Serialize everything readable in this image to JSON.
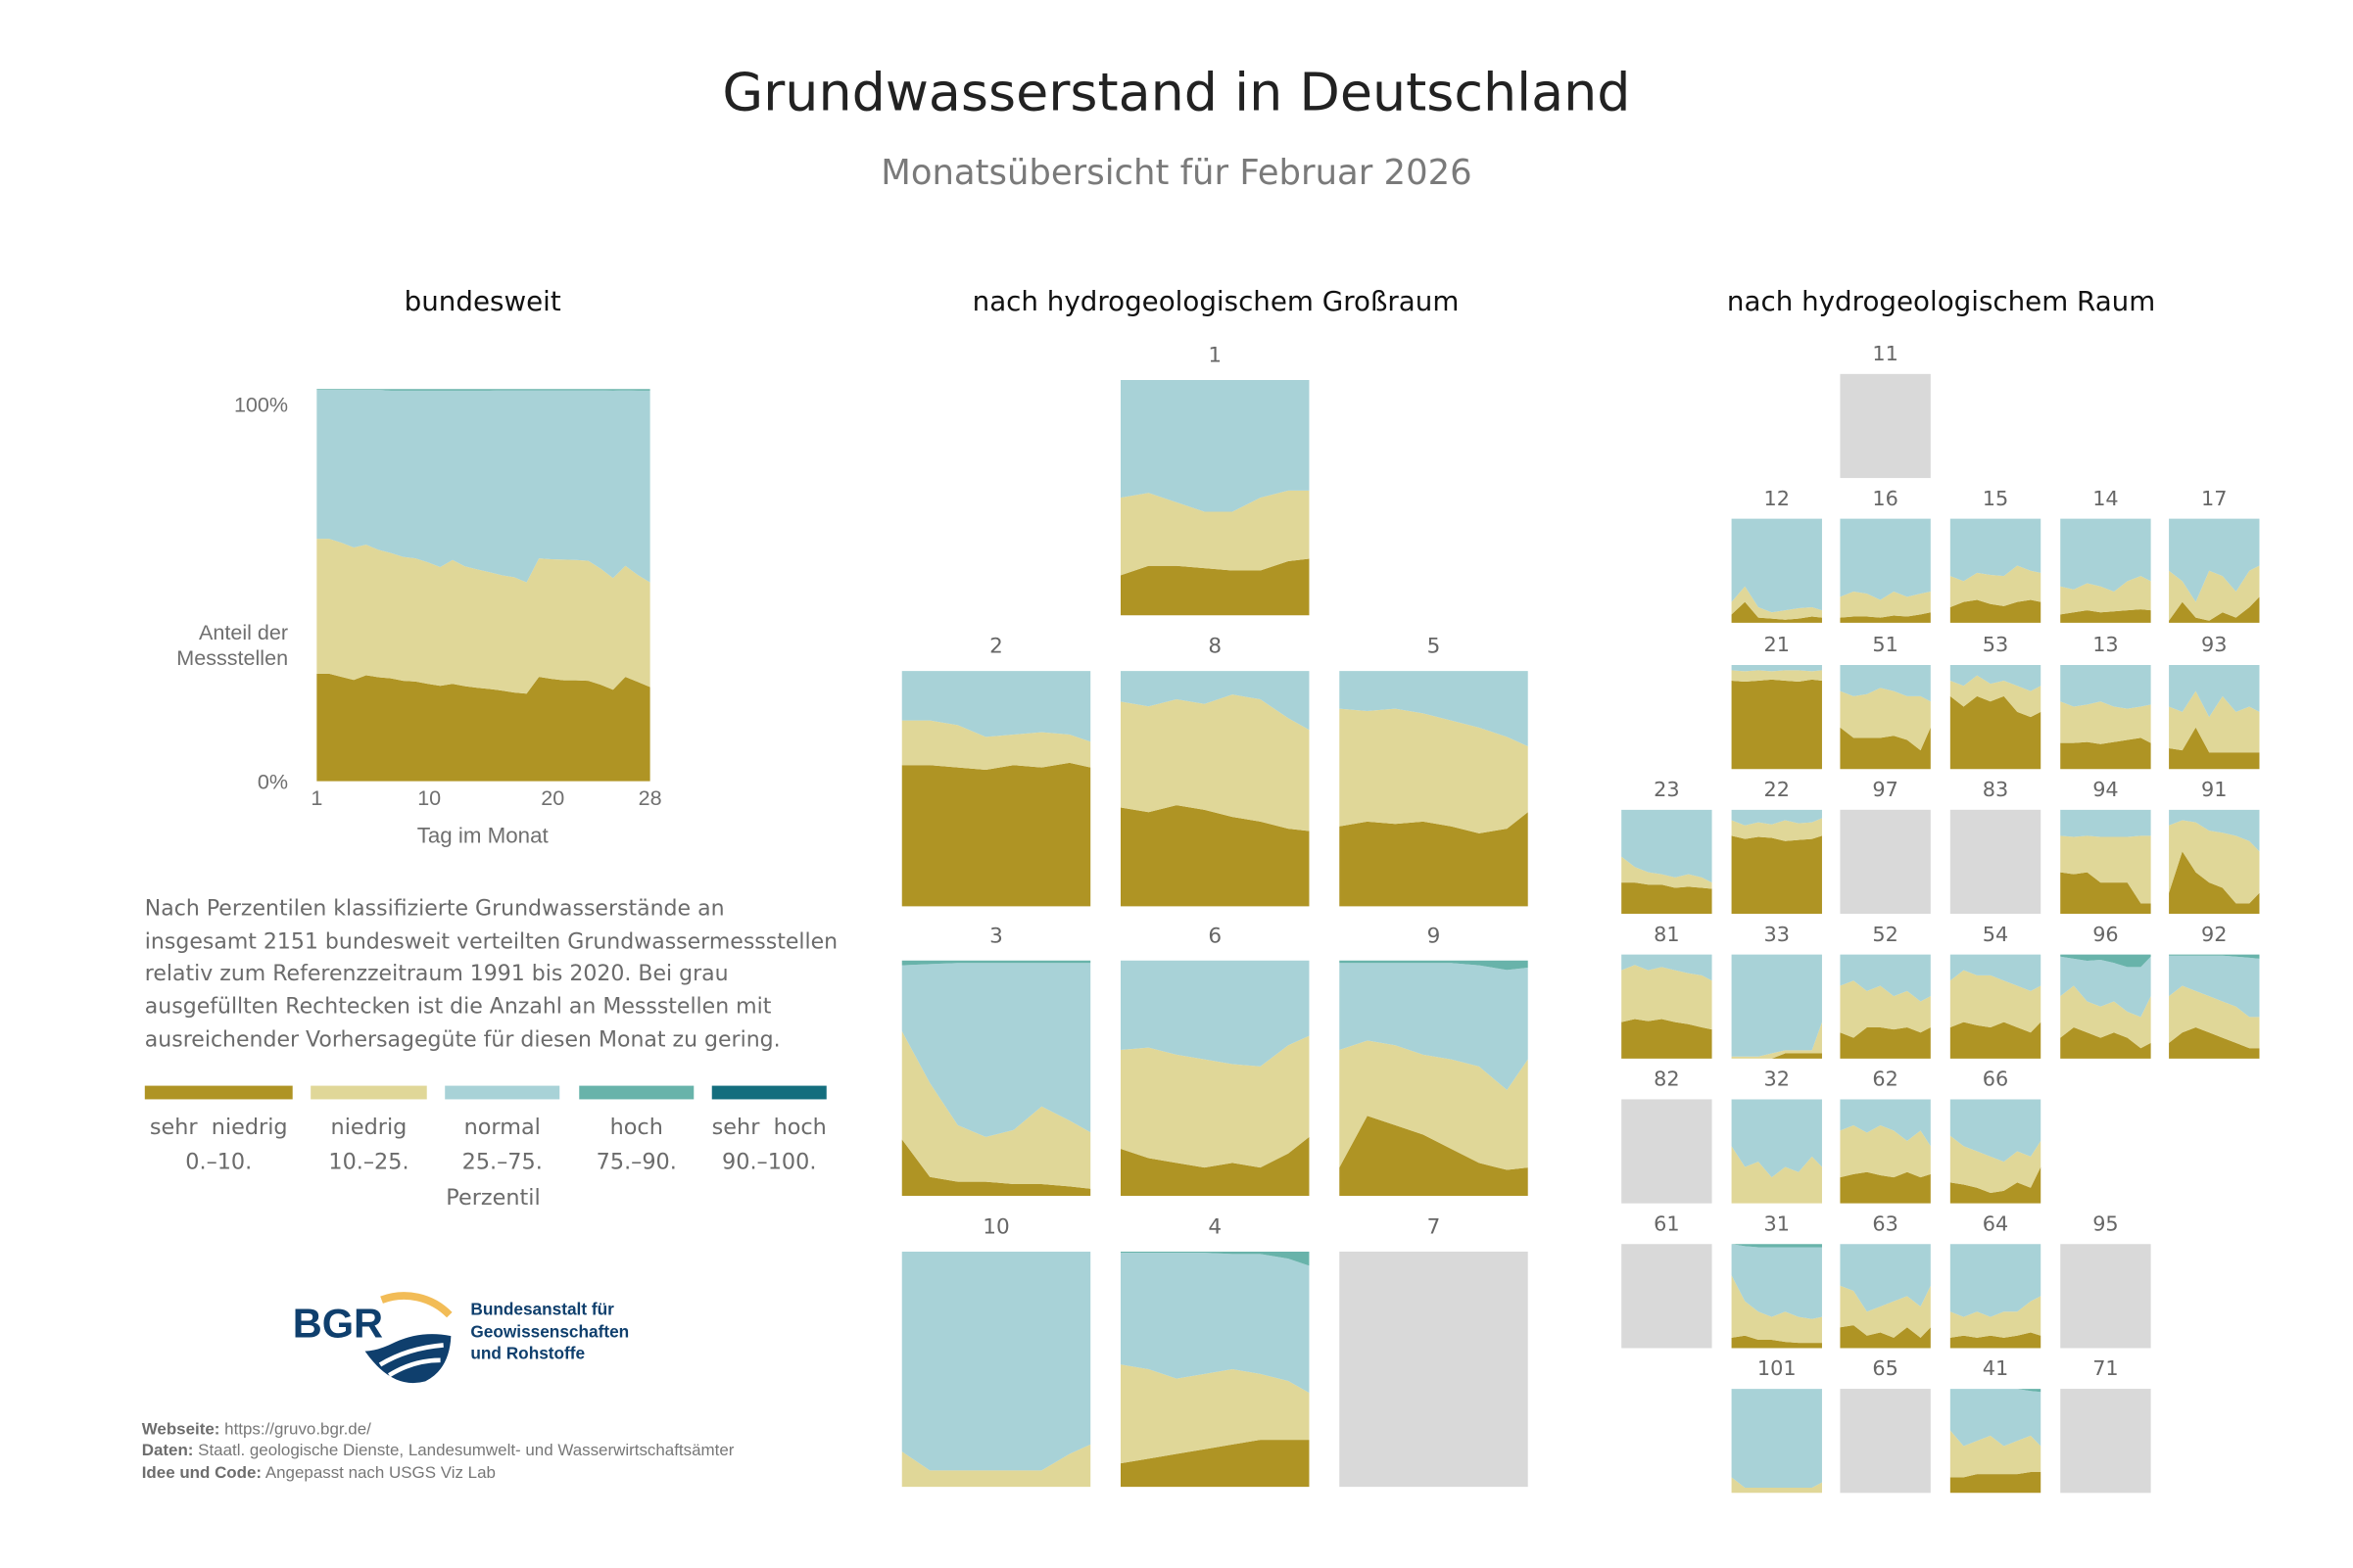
{
  "title": "Grundwasserstand in Deutschland",
  "subtitle": "Monatsübersicht für Februar 2026",
  "sections": {
    "national": "bundesweit",
    "major_regions": "nach hydrogeologischem Großraum",
    "regions": "nach hydrogeologischem Raum"
  },
  "description": "Nach Perzentilen klassifizierte Grundwasserstände an insgesamt 2151 bundesweit verteilten Grundwassermess­stellen relativ zum Referenzzeitraum 1991 bis 2020. Bei grau ausgefüllten Rechtecken ist die Anzahl an Messstellen mit ausreichender Vorhersagegüte für diesen Monat zu gering.",
  "legend": {
    "title": "Perzentil",
    "items": [
      {
        "name": "sehr  niedrig",
        "range": "0.–10.",
        "color": "#AF9424"
      },
      {
        "name": "niedrig",
        "range": "10.–25.",
        "color": "#E0D798"
      },
      {
        "name": "normal",
        "range": "25.–75.",
        "color": "#A8D2D7"
      },
      {
        "name": "hoch",
        "range": "75.–90.",
        "color": "#68B3AA"
      },
      {
        "name": "sehr  hoch",
        "range": "90.–100.",
        "color": "#146E7E"
      }
    ],
    "insufficient_color": "#D9D9D9"
  },
  "logo": {
    "abbr": "BGR",
    "line1": "Bundesanstalt für",
    "line2": "Geowissenschaften",
    "line3": "und Rohstoffe",
    "colors": {
      "blue": "#0F3F6D",
      "gold": "#F2BC57"
    }
  },
  "footer": {
    "web_label": "Webseite:",
    "web_value": "https://gruvo.bgr.de/",
    "data_label": "Daten:",
    "data_value": "Staatl. geologische Dienste, Landesumwelt- und Wasserwirtschaftsämter",
    "code_label": "Idee und Code:",
    "code_value": "Angepasst nach USGS Viz Lab"
  },
  "chart_data": [
    {
      "type": "area",
      "stacked": true,
      "title": "bundesweit",
      "xlabel": "Tag im Monat",
      "ylabel": "Anteil der Messstellen",
      "xticks": [
        "1",
        "10",
        "20",
        "28"
      ],
      "yticks": [
        "0%",
        "100%"
      ],
      "xlim": [
        1,
        28
      ],
      "ylim": [
        0,
        100
      ],
      "x": [
        1,
        2,
        3,
        4,
        5,
        6,
        7,
        8,
        9,
        10,
        11,
        12,
        13,
        14,
        15,
        16,
        17,
        18,
        19,
        20,
        21,
        22,
        23,
        24,
        25,
        26,
        27,
        28
      ],
      "cumulative_upper_bounds_percent": {
        "sehr_niedrig": [
          27.4,
          27.4,
          26.6,
          25.8,
          27.0,
          26.5,
          26.2,
          25.6,
          25.4,
          24.8,
          24.3,
          24.8,
          24.2,
          23.8,
          23.5,
          23.1,
          22.6,
          22.3,
          26.6,
          26.1,
          25.7,
          25.7,
          25.6,
          24.6,
          23.3,
          26.6,
          25.3,
          24.0
        ],
        "niedrig": [
          61.8,
          61.8,
          60.8,
          59.6,
          60.3,
          59.0,
          58.2,
          57.2,
          56.8,
          55.8,
          54.6,
          56.4,
          54.8,
          54.0,
          53.3,
          52.5,
          52.0,
          50.7,
          56.8,
          56.6,
          56.5,
          56.4,
          56.2,
          54.2,
          51.8,
          54.9,
          52.6,
          50.7
        ],
        "normal": [
          99.8,
          99.8,
          99.8,
          99.8,
          99.8,
          99.8,
          99.6,
          99.6,
          99.6,
          99.6,
          99.6,
          99.6,
          99.6,
          99.6,
          99.6,
          99.7,
          99.7,
          99.7,
          99.7,
          99.7,
          99.7,
          99.7,
          99.7,
          99.7,
          99.6,
          99.7,
          99.6,
          99.6
        ],
        "hoch": [
          100,
          100,
          100,
          100,
          100,
          100,
          100,
          100,
          100,
          100,
          100,
          100,
          100,
          100,
          100,
          100,
          100,
          100,
          100,
          100,
          100,
          100,
          100,
          100,
          100,
          100,
          100,
          100
        ]
      }
    },
    {
      "type": "area",
      "stacked": true,
      "title": "nach hydrogeologischem Großraum",
      "x": [
        1,
        5,
        9,
        13,
        17,
        21,
        25,
        28
      ],
      "panels": [
        {
          "id": "1",
          "c1": [
            17,
            21,
            21,
            20,
            19,
            19,
            23,
            24
          ],
          "c2": [
            50,
            52,
            48,
            44,
            44,
            50,
            53,
            53
          ]
        },
        {
          "id": "2",
          "c1": [
            60,
            60,
            59,
            58,
            60,
            59,
            61,
            59
          ],
          "c2": [
            79,
            79,
            77,
            72,
            73,
            74,
            73,
            70
          ]
        },
        {
          "id": "8",
          "c1": [
            42,
            40,
            43,
            41,
            38,
            36,
            33,
            32
          ],
          "c2": [
            87,
            85,
            88,
            86,
            90,
            88,
            80,
            75
          ]
        },
        {
          "id": "5",
          "c1": [
            34,
            36,
            35,
            36,
            34,
            31,
            33,
            40
          ],
          "c2": [
            84,
            83,
            84,
            82,
            79,
            76,
            72,
            68
          ]
        },
        {
          "id": "3",
          "c1": [
            24,
            8,
            6,
            6,
            5,
            5,
            4,
            3
          ],
          "c2": [
            70,
            48,
            30,
            25,
            28,
            38,
            32,
            27
          ],
          "c3": [
            98,
            98.5,
            99,
            99,
            99,
            99,
            99,
            99
          ]
        },
        {
          "id": "6",
          "c1": [
            20,
            16,
            14,
            12,
            14,
            12,
            18,
            25
          ],
          "c2": [
            62,
            63,
            60,
            58,
            56,
            55,
            64,
            68
          ]
        },
        {
          "id": "9",
          "c1": [
            12,
            34,
            30,
            26,
            20,
            14,
            11,
            12
          ],
          "c2": [
            62,
            66,
            64,
            60,
            58,
            55,
            45,
            58
          ],
          "c3": [
            99,
            99,
            99,
            99,
            99,
            98,
            96,
            97
          ]
        },
        {
          "id": "10",
          "c1": [
            0,
            0,
            0,
            0,
            0,
            0,
            0,
            0
          ],
          "c2": [
            15,
            7,
            7,
            7,
            7,
            7,
            14,
            18
          ]
        },
        {
          "id": "4",
          "c1": [
            10,
            12,
            14,
            16,
            18,
            20,
            20,
            20
          ],
          "c2": [
            52,
            50,
            46,
            48,
            50,
            48,
            45,
            40
          ],
          "c3": [
            99.5,
            99.5,
            99.5,
            99.5,
            99,
            99,
            97,
            94
          ]
        },
        {
          "id": "7",
          "insufficient": true
        }
      ]
    },
    {
      "type": "area",
      "stacked": true,
      "title": "nach hydrogeologischem Raum",
      "x": [
        1,
        5,
        9,
        13,
        17,
        21,
        25,
        28
      ],
      "panels": [
        {
          "id": "11",
          "insufficient": true
        },
        {
          "id": "12",
          "c1": [
            8,
            20,
            5,
            4,
            3,
            4,
            6,
            5
          ],
          "c2": [
            20,
            35,
            15,
            10,
            12,
            14,
            15,
            12
          ]
        },
        {
          "id": "16",
          "c1": [
            5,
            6,
            6,
            5,
            7,
            6,
            8,
            10
          ],
          "c2": [
            25,
            30,
            28,
            22,
            30,
            25,
            28,
            30
          ]
        },
        {
          "id": "15",
          "c1": [
            15,
            20,
            22,
            18,
            16,
            20,
            22,
            20
          ],
          "c2": [
            45,
            40,
            48,
            46,
            45,
            55,
            50,
            48
          ]
        },
        {
          "id": "14",
          "c1": [
            8,
            10,
            12,
            10,
            11,
            12,
            13,
            12
          ],
          "c2": [
            35,
            32,
            38,
            35,
            30,
            40,
            45,
            40
          ]
        },
        {
          "id": "17",
          "c1": [
            2,
            20,
            5,
            2,
            10,
            5,
            15,
            25
          ],
          "c2": [
            50,
            40,
            20,
            50,
            45,
            30,
            50,
            55
          ]
        },
        {
          "id": "21",
          "c1": [
            85,
            84,
            85,
            86,
            85,
            84,
            86,
            85
          ],
          "c2": [
            95,
            94,
            95,
            94,
            95,
            95,
            94,
            95
          ]
        },
        {
          "id": "51",
          "c1": [
            40,
            30,
            30,
            30,
            32,
            28,
            18,
            40
          ],
          "c2": [
            75,
            70,
            72,
            78,
            75,
            70,
            70,
            65
          ]
        },
        {
          "id": "53",
          "c1": [
            70,
            60,
            70,
            65,
            70,
            55,
            50,
            55
          ],
          "c2": [
            85,
            80,
            90,
            82,
            85,
            80,
            75,
            80
          ]
        },
        {
          "id": "13",
          "c1": [
            25,
            25,
            26,
            24,
            26,
            28,
            30,
            25
          ],
          "c2": [
            65,
            60,
            62,
            65,
            60,
            58,
            60,
            62
          ]
        },
        {
          "id": "93",
          "c1": [
            20,
            18,
            40,
            16,
            16,
            16,
            16,
            16
          ],
          "c2": [
            60,
            55,
            75,
            50,
            70,
            55,
            60,
            55
          ]
        },
        {
          "id": "23",
          "c1": [
            30,
            30,
            28,
            28,
            25,
            26,
            25,
            24
          ],
          "c2": [
            55,
            45,
            40,
            38,
            35,
            38,
            35,
            30
          ]
        },
        {
          "id": "22",
          "c1": [
            75,
            72,
            74,
            73,
            70,
            71,
            72,
            75
          ],
          "c2": [
            90,
            85,
            88,
            86,
            90,
            87,
            88,
            92
          ]
        },
        {
          "id": "97",
          "insufficient": true
        },
        {
          "id": "83",
          "insufficient": true
        },
        {
          "id": "94",
          "c1": [
            40,
            38,
            40,
            30,
            30,
            30,
            10,
            10
          ],
          "c2": [
            75,
            74,
            75,
            74,
            74,
            74,
            75,
            75
          ]
        },
        {
          "id": "91",
          "c1": [
            20,
            60,
            40,
            30,
            25,
            10,
            10,
            20
          ],
          "c2": [
            85,
            90,
            88,
            80,
            78,
            75,
            70,
            60
          ]
        },
        {
          "id": "81",
          "c1": [
            35,
            38,
            36,
            38,
            35,
            33,
            30,
            28
          ],
          "c2": [
            85,
            90,
            85,
            88,
            85,
            82,
            80,
            75
          ]
        },
        {
          "id": "33",
          "c1": [
            0,
            0,
            0,
            0,
            5,
            5,
            5,
            5
          ],
          "c2": [
            2,
            2,
            2,
            5,
            8,
            8,
            8,
            35
          ]
        },
        {
          "id": "52",
          "c1": [
            25,
            20,
            30,
            30,
            28,
            30,
            25,
            30
          ],
          "c2": [
            70,
            75,
            65,
            70,
            60,
            65,
            55,
            60
          ]
        },
        {
          "id": "54",
          "c1": [
            30,
            35,
            32,
            30,
            35,
            30,
            25,
            35
          ],
          "c2": [
            75,
            85,
            80,
            80,
            75,
            70,
            65,
            70
          ]
        },
        {
          "id": "96",
          "c1": [
            20,
            30,
            25,
            20,
            25,
            20,
            10,
            15
          ],
          "c2": [
            60,
            70,
            55,
            50,
            55,
            45,
            40,
            60
          ],
          "c3": [
            98,
            96,
            94,
            95,
            92,
            88,
            88,
            98
          ]
        },
        {
          "id": "92",
          "c1": [
            15,
            25,
            30,
            25,
            20,
            15,
            10,
            10
          ],
          "c2": [
            60,
            70,
            65,
            60,
            55,
            50,
            40,
            40
          ],
          "c3": [
            99,
            99,
            99,
            99,
            99,
            98,
            97,
            96
          ]
        },
        {
          "id": "82",
          "insufficient": true
        },
        {
          "id": "32",
          "c1": [
            0,
            0,
            0,
            0,
            0,
            0,
            0,
            0
          ],
          "c2": [
            55,
            35,
            40,
            25,
            35,
            30,
            45,
            35
          ]
        },
        {
          "id": "62",
          "c1": [
            25,
            28,
            30,
            27,
            25,
            30,
            25,
            28
          ],
          "c2": [
            70,
            75,
            68,
            75,
            70,
            60,
            70,
            55
          ]
        },
        {
          "id": "66",
          "c1": [
            20,
            18,
            15,
            10,
            12,
            20,
            15,
            35
          ],
          "c2": [
            65,
            55,
            50,
            45,
            40,
            50,
            45,
            60
          ]
        },
        {
          "id": "61",
          "insufficient": true
        },
        {
          "id": "31",
          "c1": [
            10,
            12,
            8,
            8,
            6,
            5,
            5,
            5
          ],
          "c2": [
            70,
            45,
            35,
            30,
            35,
            30,
            28,
            30
          ],
          "c3": [
            100,
            98,
            97,
            97,
            97,
            97,
            97,
            97
          ]
        },
        {
          "id": "63",
          "c1": [
            20,
            22,
            12,
            15,
            10,
            20,
            10,
            20
          ],
          "c2": [
            60,
            55,
            35,
            40,
            45,
            50,
            40,
            60
          ]
        },
        {
          "id": "64",
          "c1": [
            10,
            12,
            10,
            12,
            10,
            12,
            15,
            12
          ],
          "c2": [
            35,
            30,
            35,
            30,
            35,
            35,
            45,
            50
          ]
        },
        {
          "id": "95",
          "insufficient": true
        },
        {
          "id": "101",
          "c1": [
            0,
            0,
            0,
            0,
            0,
            0,
            0,
            0
          ],
          "c2": [
            15,
            5,
            5,
            5,
            5,
            5,
            5,
            10
          ]
        },
        {
          "id": "65",
          "insufficient": true
        },
        {
          "id": "41",
          "c1": [
            15,
            15,
            18,
            18,
            18,
            18,
            20,
            20
          ],
          "c2": [
            60,
            45,
            50,
            55,
            45,
            50,
            55,
            45
          ],
          "c3": [
            100,
            100,
            100,
            100,
            100,
            100,
            98,
            97
          ]
        },
        {
          "id": "71",
          "insufficient": true
        }
      ]
    }
  ]
}
